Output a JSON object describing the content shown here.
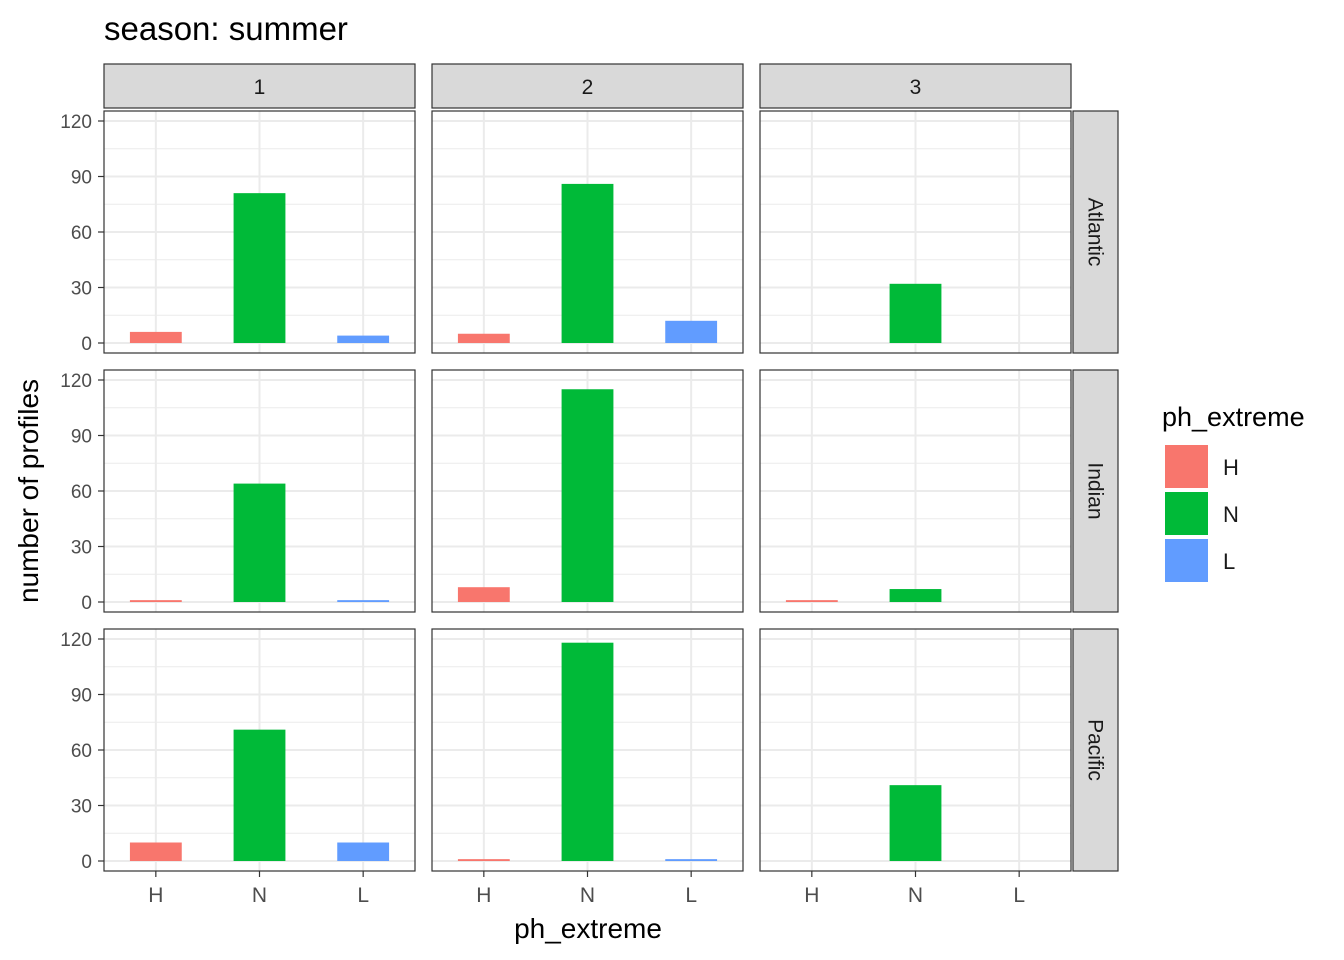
{
  "title": "season: summer",
  "xlabel": "ph_extreme",
  "ylabel": "number of profiles",
  "legend": {
    "title": "ph_extreme",
    "position": "right",
    "items": [
      {
        "label": "H",
        "color": "#F8766D"
      },
      {
        "label": "N",
        "color": "#00BA38"
      },
      {
        "label": "L",
        "color": "#619CFF"
      }
    ]
  },
  "chart_data": {
    "type": "bar",
    "title": "season: summer",
    "xlabel": "ph_extreme",
    "ylabel": "number of profiles",
    "categories": [
      "H",
      "N",
      "L"
    ],
    "colors": {
      "H": "#F8766D",
      "N": "#00BA38",
      "L": "#619CFF"
    },
    "ylim": [
      0,
      120
    ],
    "yticks": [
      0,
      30,
      60,
      90,
      120
    ],
    "grid": true,
    "facet_columns": [
      "1",
      "2",
      "3"
    ],
    "facet_rows": [
      "Atlantic",
      "Indian",
      "Pacific"
    ],
    "panels": [
      {
        "row": "Atlantic",
        "col": "1",
        "values": {
          "H": 6,
          "N": 81,
          "L": 4
        }
      },
      {
        "row": "Atlantic",
        "col": "2",
        "values": {
          "H": 5,
          "N": 86,
          "L": 12
        }
      },
      {
        "row": "Atlantic",
        "col": "3",
        "values": {
          "N": 32
        }
      },
      {
        "row": "Indian",
        "col": "1",
        "values": {
          "H": 1,
          "N": 64,
          "L": 1
        }
      },
      {
        "row": "Indian",
        "col": "2",
        "values": {
          "H": 8,
          "N": 115
        }
      },
      {
        "row": "Indian",
        "col": "3",
        "values": {
          "H": 1,
          "N": 7
        }
      },
      {
        "row": "Pacific",
        "col": "1",
        "values": {
          "H": 10,
          "N": 71,
          "L": 10
        }
      },
      {
        "row": "Pacific",
        "col": "2",
        "values": {
          "H": 1,
          "N": 118,
          "L": 1
        }
      },
      {
        "row": "Pacific",
        "col": "3",
        "values": {
          "N": 41
        }
      }
    ]
  }
}
